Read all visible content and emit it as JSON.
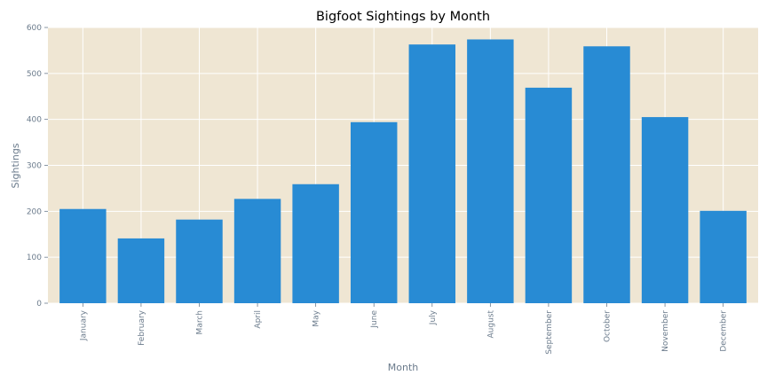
{
  "chart_data": {
    "type": "bar",
    "title": "Bigfoot Sightings by Month",
    "xlabel": "Month",
    "ylabel": "Sightings",
    "categories": [
      "January",
      "February",
      "March",
      "April",
      "May",
      "June",
      "July",
      "August",
      "September",
      "October",
      "November",
      "December"
    ],
    "values": [
      205,
      141,
      182,
      227,
      259,
      394,
      563,
      574,
      469,
      559,
      405,
      201
    ],
    "ylim": [
      0,
      600
    ],
    "yticks": [
      "0",
      "100",
      "200",
      "300",
      "400",
      "500",
      "600"
    ],
    "grid": true,
    "legend": "none",
    "colors": {
      "bar": "#288bd4",
      "plot_background": "#efe6d3",
      "grid": "#ffffff",
      "text": "#6b7b8c"
    }
  }
}
